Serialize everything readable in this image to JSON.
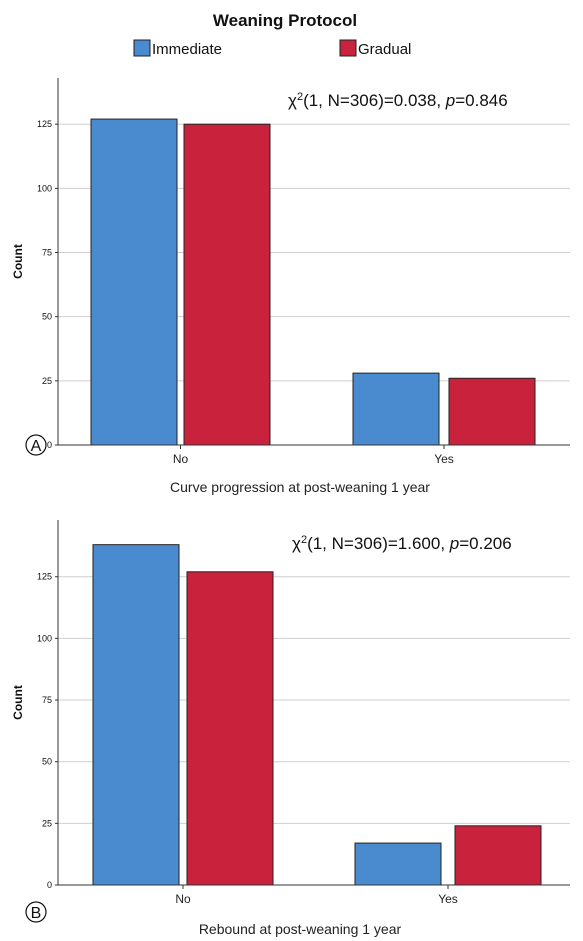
{
  "legend": {
    "title": "Weaning Protocol",
    "items": [
      {
        "label": "Immediate",
        "color": "#4a8bd0"
      },
      {
        "label": "Gradual",
        "color": "#c8223c"
      }
    ]
  },
  "chart_data": [
    {
      "type": "bar",
      "panel": "A",
      "categories": [
        "No",
        "Yes"
      ],
      "series": [
        {
          "name": "Immediate",
          "values": [
            127,
            28
          ]
        },
        {
          "name": "Gradual",
          "values": [
            125,
            26
          ]
        }
      ],
      "xlabel": "Curve progression at post-weaning 1 year",
      "ylabel": "Count",
      "yticks": [
        0,
        25,
        50,
        75,
        100,
        125
      ],
      "ylim": [
        0,
        143
      ],
      "grid": "horizontal",
      "annotation": {
        "pre": "χ",
        "sup": "2",
        "mid": "(1, N=306)=0.038, ",
        "p": "p",
        "post": "=0.846"
      }
    },
    {
      "type": "bar",
      "panel": "B",
      "categories": [
        "No",
        "Yes"
      ],
      "series": [
        {
          "name": "Immediate",
          "values": [
            138,
            17
          ]
        },
        {
          "name": "Gradual",
          "values": [
            127,
            24
          ]
        }
      ],
      "xlabel": "Rebound at post-weaning 1 year",
      "ylabel": "Count",
      "yticks": [
        0,
        25,
        50,
        75,
        100,
        125
      ],
      "ylim": [
        0,
        148
      ],
      "grid": "horizontal",
      "annotation": {
        "pre": "χ",
        "sup": "2",
        "mid": "(1, N=306)=1.600, ",
        "p": "p",
        "post": "=0.206"
      }
    }
  ]
}
